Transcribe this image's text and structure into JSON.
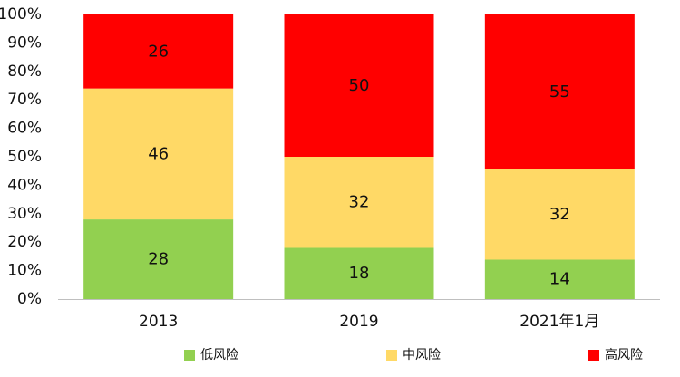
{
  "chart_data": {
    "type": "bar",
    "stacked": true,
    "percent_stacked": true,
    "categories": [
      "2013",
      "2019",
      "2021年1月"
    ],
    "series": [
      {
        "name": "低风险",
        "values": [
          28,
          18,
          14
        ],
        "color": "#92d050"
      },
      {
        "name": "中风险",
        "values": [
          46,
          32,
          32
        ],
        "color": "#ffd966"
      },
      {
        "name": "高风险",
        "values": [
          26,
          50,
          55
        ],
        "color": "#ff0000"
      }
    ],
    "y_ticks": [
      "0%",
      "10%",
      "20%",
      "30%",
      "40%",
      "50%",
      "60%",
      "70%",
      "80%",
      "90%",
      "100%"
    ],
    "ylim": [
      0,
      100
    ],
    "grid": false,
    "legend_position": "bottom",
    "data_labels": true
  }
}
